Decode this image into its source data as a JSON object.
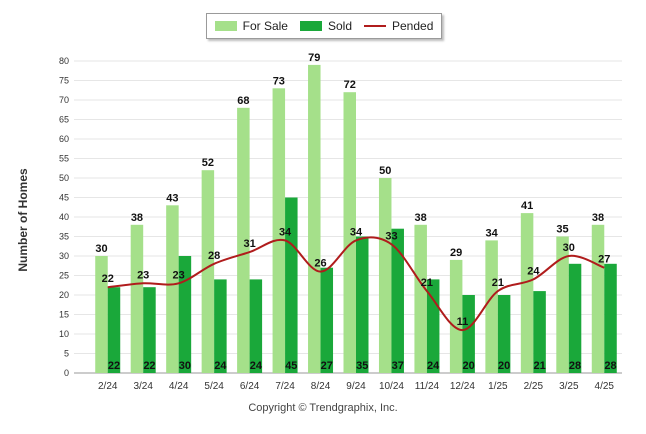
{
  "legend": {
    "for_sale": "For Sale",
    "sold": "Sold",
    "pended": "Pended"
  },
  "copyright": "Copyright © Trendgraphix, Inc.",
  "colors": {
    "for_sale": "#a5e08a",
    "sold": "#1aa83a",
    "pended": "#b01c1c"
  },
  "chart_data": {
    "type": "bar",
    "ylabel": "Number of Homes",
    "xlabel": "",
    "ylim": [
      0,
      80
    ],
    "yticks": [
      0,
      5,
      10,
      15,
      20,
      25,
      30,
      35,
      40,
      45,
      50,
      55,
      60,
      65,
      70,
      75,
      80
    ],
    "grid": true,
    "legend_position": "top-center",
    "categories": [
      "2/24",
      "3/24",
      "4/24",
      "5/24",
      "6/24",
      "7/24",
      "8/24",
      "9/24",
      "10/24",
      "11/24",
      "12/24",
      "1/25",
      "2/25",
      "3/25",
      "4/25"
    ],
    "series": [
      {
        "name": "For Sale",
        "kind": "bar",
        "values": [
          30,
          38,
          43,
          52,
          68,
          73,
          79,
          72,
          50,
          38,
          29,
          34,
          41,
          35,
          38
        ]
      },
      {
        "name": "Sold",
        "kind": "bar",
        "values": [
          22,
          22,
          30,
          24,
          24,
          45,
          27,
          35,
          37,
          24,
          20,
          20,
          21,
          28,
          28
        ]
      },
      {
        "name": "Pended",
        "kind": "line",
        "values": [
          22,
          23,
          23,
          28,
          31,
          34,
          26,
          34,
          33,
          21,
          11,
          21,
          24,
          30,
          27
        ]
      }
    ]
  }
}
